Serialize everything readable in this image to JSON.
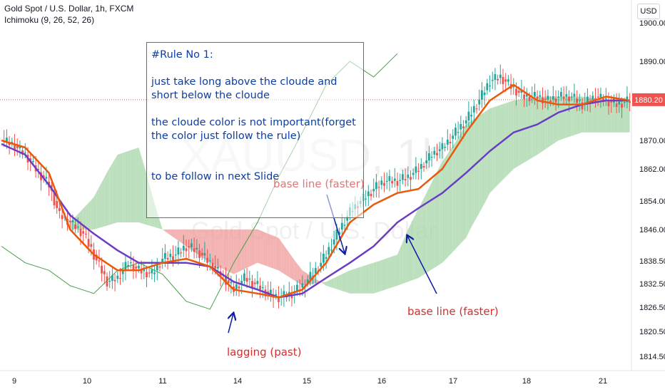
{
  "legend": {
    "symbol": "Gold Spot / U.S. Dollar, 1h, FXCM",
    "indicator": "Ichimoku (9, 26, 52, 26)"
  },
  "currency_button": "USD",
  "watermark": {
    "ticker": "XAUUSD, 1h",
    "name": "Gold Spot / U.S. Dollar"
  },
  "price_tag": "1880.20",
  "note": {
    "line1": "#Rule No 1:",
    "line2": "just take long above the cloude and short below the cloude",
    "line3": "the cloude color is not important(forget the color just follow the rule)",
    "line4": "to be follow in next Slide"
  },
  "annotations": {
    "base_line_upper": "base line (faster)",
    "base_line_lower": "base line (faster)",
    "lagging": "lagging (past)"
  },
  "colors": {
    "bull": "#26a69a",
    "bear": "#ef5350",
    "conversion": "#e8590c",
    "base": "#6a3dc4",
    "lagging": "#43a047",
    "cloud_bull": "#a5d6a7",
    "cloud_bear": "#ef9a9a",
    "note_text": "#0d3ea0",
    "note_border": "#e53935",
    "arrow": "#0d1fa0",
    "anno_red": "#d32f2f",
    "anno_pink": "#e57373"
  },
  "chart_data": {
    "type": "candlestick",
    "y_axis": {
      "ticks": [
        1900.0,
        1890.0,
        1880.0,
        1870.0,
        1862.0,
        1854.0,
        1846.0,
        1838.5,
        1832.5,
        1826.5,
        1820.5,
        1814.5
      ],
      "tick_labels": [
        "1900.00",
        "1890.00",
        "1880.00",
        "1870.00",
        "1862.00",
        "1854.00",
        "1846.00",
        "1838.50",
        "1832.50",
        "1826.50",
        "1820.50",
        "1814.50"
      ],
      "range": [
        1811,
        1903
      ],
      "last_price": 1880.2
    },
    "x_axis": {
      "tick_labels": [
        "9",
        "10",
        "11",
        "14",
        "15",
        "16",
        "17",
        "18",
        "21"
      ]
    },
    "candle_path": [
      [
        0,
        1870
      ],
      [
        4,
        1869
      ],
      [
        9,
        1866
      ],
      [
        13,
        1862
      ],
      [
        18,
        1858
      ],
      [
        22,
        1850
      ],
      [
        26,
        1848
      ],
      [
        31,
        1845
      ],
      [
        35,
        1840
      ],
      [
        40,
        1833
      ],
      [
        44,
        1834
      ],
      [
        48,
        1838
      ],
      [
        52,
        1836
      ],
      [
        57,
        1835
      ],
      [
        61,
        1839
      ],
      [
        66,
        1840
      ],
      [
        70,
        1842
      ],
      [
        74,
        1841
      ],
      [
        79,
        1838
      ],
      [
        83,
        1835
      ],
      [
        88,
        1831
      ],
      [
        92,
        1834
      ],
      [
        97,
        1832
      ],
      [
        101,
        1830
      ],
      [
        105,
        1829
      ],
      [
        110,
        1830
      ],
      [
        114,
        1832
      ],
      [
        119,
        1836
      ],
      [
        123,
        1840
      ],
      [
        128,
        1846
      ],
      [
        132,
        1851
      ],
      [
        136,
        1854
      ],
      [
        141,
        1857
      ],
      [
        145,
        1859
      ],
      [
        150,
        1859
      ],
      [
        154,
        1860
      ],
      [
        158,
        1862
      ],
      [
        163,
        1866
      ],
      [
        167,
        1868
      ],
      [
        172,
        1872
      ],
      [
        176,
        1875
      ],
      [
        180,
        1879
      ],
      [
        185,
        1885
      ],
      [
        189,
        1886
      ],
      [
        194,
        1883
      ],
      [
        198,
        1881
      ],
      [
        203,
        1881
      ],
      [
        207,
        1880
      ],
      [
        211,
        1881
      ],
      [
        216,
        1881
      ],
      [
        220,
        1879
      ],
      [
        225,
        1881
      ],
      [
        229,
        1880
      ],
      [
        233,
        1879
      ],
      [
        238,
        1880
      ]
    ],
    "conversion_line": [
      [
        0,
        1870
      ],
      [
        9,
        1868
      ],
      [
        18,
        1861
      ],
      [
        26,
        1846
      ],
      [
        35,
        1840
      ],
      [
        44,
        1836
      ],
      [
        52,
        1836
      ],
      [
        61,
        1838
      ],
      [
        70,
        1839
      ],
      [
        79,
        1837
      ],
      [
        88,
        1831
      ],
      [
        97,
        1830
      ],
      [
        105,
        1829
      ],
      [
        114,
        1831
      ],
      [
        123,
        1838
      ],
      [
        132,
        1848
      ],
      [
        141,
        1853
      ],
      [
        150,
        1856
      ],
      [
        158,
        1857
      ],
      [
        167,
        1862
      ],
      [
        176,
        1872
      ],
      [
        185,
        1880
      ],
      [
        194,
        1884
      ],
      [
        203,
        1880
      ],
      [
        211,
        1879
      ],
      [
        220,
        1879
      ],
      [
        229,
        1881
      ],
      [
        238,
        1880
      ]
    ],
    "base_line": [
      [
        0,
        1869
      ],
      [
        9,
        1866
      ],
      [
        18,
        1858
      ],
      [
        26,
        1850
      ],
      [
        35,
        1845
      ],
      [
        44,
        1841
      ],
      [
        52,
        1838
      ],
      [
        61,
        1838
      ],
      [
        70,
        1838
      ],
      [
        79,
        1837
      ],
      [
        88,
        1833
      ],
      [
        97,
        1831
      ],
      [
        105,
        1829
      ],
      [
        114,
        1830
      ],
      [
        123,
        1834
      ],
      [
        132,
        1838
      ],
      [
        141,
        1842
      ],
      [
        150,
        1848
      ],
      [
        158,
        1852
      ],
      [
        167,
        1856
      ],
      [
        176,
        1861
      ],
      [
        185,
        1867
      ],
      [
        194,
        1872
      ],
      [
        203,
        1874
      ],
      [
        211,
        1877
      ],
      [
        220,
        1879
      ],
      [
        229,
        1880
      ],
      [
        238,
        1880
      ]
    ],
    "lagging_span": [
      [
        0,
        1842
      ],
      [
        9,
        1838
      ],
      [
        18,
        1836
      ],
      [
        26,
        1832
      ],
      [
        35,
        1830
      ],
      [
        44,
        1836
      ],
      [
        52,
        1838
      ],
      [
        61,
        1835
      ],
      [
        70,
        1828
      ],
      [
        79,
        1826
      ],
      [
        88,
        1838
      ],
      [
        97,
        1848
      ],
      [
        105,
        1860
      ],
      [
        114,
        1872
      ],
      [
        123,
        1884
      ],
      [
        132,
        1890
      ],
      [
        141,
        1886
      ],
      [
        150,
        1892
      ]
    ],
    "cloud_span_a": [
      [
        26,
        1848
      ],
      [
        35,
        1855
      ],
      [
        44,
        1866
      ],
      [
        52,
        1868
      ],
      [
        61,
        1846
      ],
      [
        70,
        1842
      ],
      [
        79,
        1838
      ],
      [
        88,
        1835
      ],
      [
        97,
        1838
      ],
      [
        105,
        1836
      ],
      [
        114,
        1832
      ],
      [
        123,
        1833
      ],
      [
        132,
        1836
      ],
      [
        141,
        1838
      ],
      [
        150,
        1840
      ],
      [
        158,
        1852
      ],
      [
        167,
        1864
      ],
      [
        176,
        1874
      ],
      [
        185,
        1878
      ],
      [
        194,
        1880
      ],
      [
        203,
        1881
      ],
      [
        211,
        1881
      ],
      [
        220,
        1881
      ],
      [
        229,
        1880
      ],
      [
        238,
        1880
      ]
    ],
    "cloud_span_b": [
      [
        26,
        1846
      ],
      [
        35,
        1846
      ],
      [
        44,
        1848
      ],
      [
        52,
        1848
      ],
      [
        61,
        1846
      ],
      [
        70,
        1846
      ],
      [
        79,
        1846
      ],
      [
        88,
        1846
      ],
      [
        97,
        1846
      ],
      [
        105,
        1844
      ],
      [
        114,
        1836
      ],
      [
        123,
        1832
      ],
      [
        132,
        1830
      ],
      [
        141,
        1830
      ],
      [
        150,
        1832
      ],
      [
        158,
        1834
      ],
      [
        167,
        1838
      ],
      [
        176,
        1844
      ],
      [
        185,
        1856
      ],
      [
        194,
        1862
      ],
      [
        203,
        1866
      ],
      [
        211,
        1870
      ],
      [
        220,
        1872
      ],
      [
        229,
        1872
      ],
      [
        238,
        1872
      ]
    ]
  }
}
